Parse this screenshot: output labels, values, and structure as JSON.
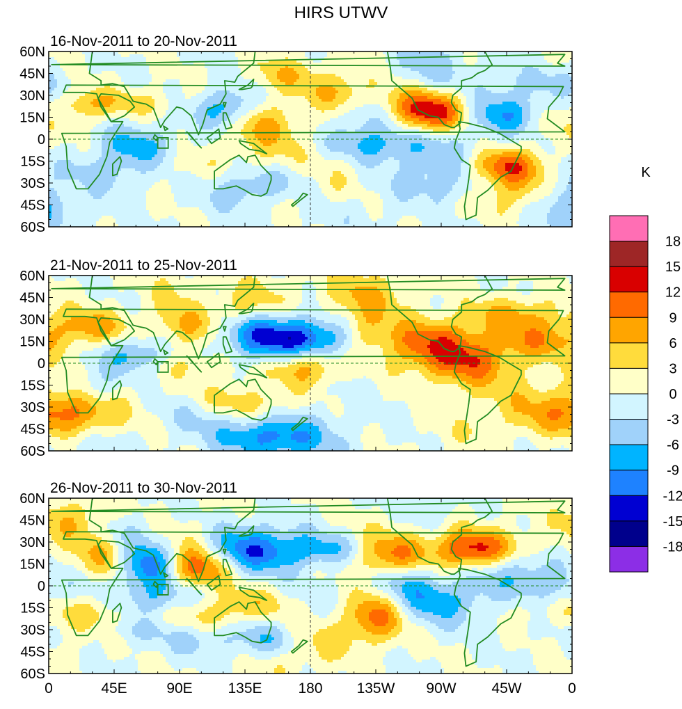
{
  "title": "HIRS UTWV",
  "panels": [
    {
      "date_range": "16-Nov-2011 to 20-Nov-2011",
      "seed": 11
    },
    {
      "date_range": "21-Nov-2011 to 25-Nov-2011",
      "seed": 29
    },
    {
      "date_range": "26-Nov-2011 to 30-Nov-2011",
      "seed": 47
    }
  ],
  "lat_labels": [
    "60N",
    "45N",
    "30N",
    "15N",
    "0",
    "15S",
    "30S",
    "45S",
    "60S"
  ],
  "lon_labels": [
    "0",
    "45E",
    "90E",
    "135E",
    "180",
    "135W",
    "90W",
    "45W",
    "0"
  ],
  "colorbar": {
    "unit": "K",
    "labels": [
      "18",
      "15",
      "12",
      "9",
      "6",
      "3",
      "0",
      "-3",
      "-6",
      "-9",
      "-12",
      "-15",
      "-18"
    ],
    "colors": [
      "#ff6eb4",
      "#9e2626",
      "#d90000",
      "#ff6a00",
      "#ffa500",
      "#ffdc3c",
      "#ffffc8",
      "#d2f5ff",
      "#a0d2fa",
      "#00b4ff",
      "#1e82ff",
      "#0000d2",
      "#00008c",
      "#8c2ee6"
    ]
  },
  "coast_color": "#228b22",
  "anomaly_centers": [
    [
      {
        "lon": 265,
        "lat": 18,
        "val": 13
      },
      {
        "lon": 312,
        "lat": -18,
        "val": 11
      },
      {
        "lon": 315,
        "lat": 22,
        "val": -11
      },
      {
        "lon": 140,
        "lat": 13,
        "val": 6
      },
      {
        "lon": 124,
        "lat": 20,
        "val": -9
      },
      {
        "lon": 210,
        "lat": 20,
        "val": -7
      },
      {
        "lon": 242,
        "lat": 22,
        "val": 7
      },
      {
        "lon": 200,
        "lat": 30,
        "val": 6
      },
      {
        "lon": 60,
        "lat": -5,
        "val": -7
      },
      {
        "lon": 148,
        "lat": -28,
        "val": -5
      },
      {
        "lon": 320,
        "lat": -35,
        "val": 6
      },
      {
        "lon": 30,
        "lat": -25,
        "val": -5
      },
      {
        "lon": 160,
        "lat": 45,
        "val": 5
      }
    ],
    [
      {
        "lon": 176,
        "lat": 0,
        "val": 12
      },
      {
        "lon": 166,
        "lat": 15,
        "val": -10
      },
      {
        "lon": 182,
        "lat": 15,
        "val": -9
      },
      {
        "lon": 140,
        "lat": -28,
        "val": 8
      },
      {
        "lon": 60,
        "lat": 5,
        "val": -9
      },
      {
        "lon": 268,
        "lat": 15,
        "val": 9
      },
      {
        "lon": 180,
        "lat": -20,
        "val": -7
      },
      {
        "lon": 20,
        "lat": -30,
        "val": 6
      },
      {
        "lon": 140,
        "lat": 22,
        "val": -7
      },
      {
        "lon": 95,
        "lat": 25,
        "val": 6
      },
      {
        "lon": 290,
        "lat": -5,
        "val": 5
      },
      {
        "lon": 340,
        "lat": 15,
        "val": 6
      },
      {
        "lon": 30,
        "lat": 25,
        "val": 7
      }
    ],
    [
      {
        "lon": 100,
        "lat": 12,
        "val": 14
      },
      {
        "lon": 70,
        "lat": 15,
        "val": -12
      },
      {
        "lon": 138,
        "lat": 25,
        "val": -11
      },
      {
        "lon": 238,
        "lat": 22,
        "val": 11
      },
      {
        "lon": 290,
        "lat": 25,
        "val": 13
      },
      {
        "lon": 225,
        "lat": -20,
        "val": 12
      },
      {
        "lon": 80,
        "lat": -5,
        "val": -9
      },
      {
        "lon": 320,
        "lat": 12,
        "val": -10
      },
      {
        "lon": 190,
        "lat": 25,
        "val": -7
      },
      {
        "lon": 140,
        "lat": -15,
        "val": 7
      },
      {
        "lon": 35,
        "lat": 20,
        "val": 6
      },
      {
        "lon": 270,
        "lat": -10,
        "val": -6
      },
      {
        "lon": 60,
        "lat": -25,
        "val": -6
      },
      {
        "lon": 245,
        "lat": 8,
        "val": -7
      }
    ]
  ]
}
